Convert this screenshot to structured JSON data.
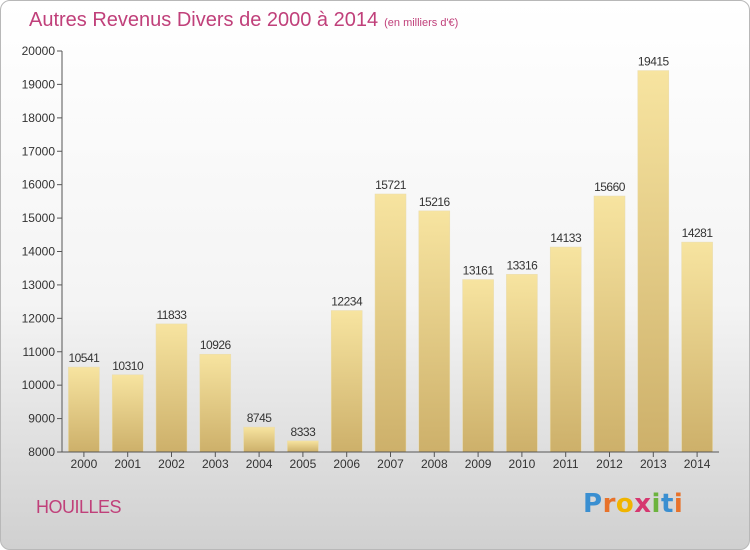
{
  "title": "Autres Revenus Divers de 2000 à 2014",
  "unit_note": "(en milliers d'€)",
  "commune": "HOUILLES",
  "brand": {
    "letters": [
      "P",
      "r",
      "o",
      "x",
      "i",
      "t",
      "i"
    ],
    "colors": [
      "#3a8fd1",
      "#e8722a",
      "#f0b400",
      "#d6376f",
      "#6cb33e",
      "#3a8fd1",
      "#e8722a"
    ]
  },
  "colors": {
    "title": "#c0407a",
    "bar_light": "#f7e4a0",
    "bar_dark": "#cdb06a"
  },
  "chart_data": {
    "type": "bar",
    "categories": [
      "2000",
      "2001",
      "2002",
      "2003",
      "2004",
      "2005",
      "2006",
      "2007",
      "2008",
      "2009",
      "2010",
      "2011",
      "2012",
      "2013",
      "2014"
    ],
    "values": [
      10541,
      10310,
      11833,
      10926,
      8745,
      8333,
      12234,
      15721,
      15216,
      13161,
      13316,
      14133,
      15660,
      19415,
      14281
    ],
    "ylim": [
      8000,
      20000
    ],
    "yticks": [
      8000,
      9000,
      10000,
      11000,
      12000,
      13000,
      14000,
      15000,
      16000,
      17000,
      18000,
      19000,
      20000
    ],
    "grid": false,
    "xlabel": "",
    "ylabel": ""
  }
}
